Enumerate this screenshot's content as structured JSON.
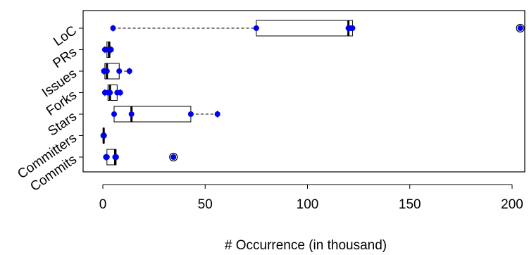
{
  "chart_data": {
    "type": "boxplot",
    "orientation": "horizontal",
    "xlabel": "# Occurrence (in thousand)",
    "xlim": [
      -5,
      205
    ],
    "xticks": [
      0,
      50,
      100,
      150,
      200
    ],
    "xtick_labels": [
      "0",
      "50",
      "100",
      "150",
      "200"
    ],
    "categories": [
      "LoC",
      "PRs",
      "Issues",
      "Forks",
      "Stars",
      "Committers",
      "Commits"
    ],
    "boxes": [
      {
        "name": "LoC",
        "whisker_low": 5,
        "q1": 75,
        "median": 120,
        "q3": 122,
        "whisker_high": 122,
        "outliers": [
          204
        ],
        "points": [
          5,
          75,
          120,
          121,
          122,
          204
        ]
      },
      {
        "name": "PRs",
        "whisker_low": 1,
        "q1": 2,
        "median": 3,
        "q3": 3.5,
        "whisker_high": 4,
        "outliers": [],
        "points": [
          1,
          2,
          3,
          3.5,
          4
        ]
      },
      {
        "name": "Issues",
        "whisker_low": 0.5,
        "q1": 1,
        "median": 2,
        "q3": 8,
        "whisker_high": 13,
        "outliers": [],
        "points": [
          0.5,
          1,
          2,
          8,
          13
        ]
      },
      {
        "name": "Forks",
        "whisker_low": 1,
        "q1": 2.5,
        "median": 3.5,
        "q3": 7,
        "whisker_high": 8.5,
        "outliers": [],
        "points": [
          1,
          2.5,
          3.5,
          7,
          8.5
        ]
      },
      {
        "name": "Stars",
        "whisker_low": 5.5,
        "q1": 5.5,
        "median": 14,
        "q3": 43,
        "whisker_high": 56,
        "outliers": [],
        "points": [
          5.5,
          14,
          43,
          56
        ]
      },
      {
        "name": "Committers",
        "whisker_low": 0.1,
        "q1": 0.2,
        "median": 0.4,
        "q3": 0.6,
        "whisker_high": 0.8,
        "outliers": [],
        "points": [
          0.2,
          0.4,
          0.6
        ]
      },
      {
        "name": "Commits",
        "whisker_low": 1.5,
        "q1": 2,
        "median": 6,
        "q3": 6.5,
        "whisker_high": 6.5,
        "outliers": [
          34.5
        ],
        "points": [
          1.5,
          2,
          6,
          6.5,
          34.5
        ]
      }
    ],
    "colors": {
      "points": "#0000ee",
      "box": "#000000",
      "background": "#ffffff"
    }
  }
}
